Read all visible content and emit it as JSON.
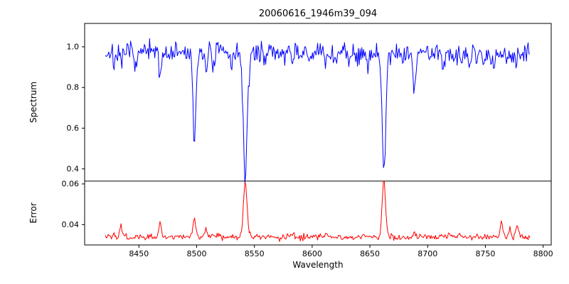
{
  "figure": {
    "title": "20060616_1946m39_094"
  },
  "x_axis": {
    "label": "Wavelength",
    "ticks": [
      8450,
      8500,
      8550,
      8600,
      8650,
      8700,
      8750,
      8800
    ],
    "lim": [
      8403,
      8807
    ],
    "data_start": 8421,
    "data_end": 8789,
    "data_step": 0.75
  },
  "chart_data": [
    {
      "type": "line",
      "id": "spectrum",
      "title": "20060616_1946m39_094",
      "ylabel": "Spectrum",
      "color": "#0000ff",
      "ylim": [
        0.34,
        1.115
      ],
      "yticks": [
        0.4,
        0.6,
        0.8,
        1.0
      ],
      "ytick_labels": [
        "0.4",
        "0.6",
        "0.8",
        "1.0"
      ],
      "continuum": 0.97,
      "noise_sigma": 0.027,
      "absorption_lines": [
        {
          "center": 8498.0,
          "depth": 0.45,
          "sigma": 1.3
        },
        {
          "center": 8542.1,
          "depth": 0.6,
          "sigma": 1.8
        },
        {
          "center": 8662.1,
          "depth": 0.58,
          "sigma": 1.6
        },
        {
          "center": 8428.5,
          "depth": 0.05,
          "sigma": 0.9
        },
        {
          "center": 8434.5,
          "depth": 0.08,
          "sigma": 1.0
        },
        {
          "center": 8448.0,
          "depth": 0.06,
          "sigma": 0.9
        },
        {
          "center": 8468.3,
          "depth": 0.11,
          "sigma": 1.0
        },
        {
          "center": 8508.0,
          "depth": 0.06,
          "sigma": 0.9
        },
        {
          "center": 8514.0,
          "depth": 0.07,
          "sigma": 1.0
        },
        {
          "center": 8530.0,
          "depth": 0.05,
          "sigma": 0.9
        },
        {
          "center": 8582.5,
          "depth": 0.06,
          "sigma": 1.0
        },
        {
          "center": 8598.0,
          "depth": 0.05,
          "sigma": 0.9
        },
        {
          "center": 8611.5,
          "depth": 0.05,
          "sigma": 0.9
        },
        {
          "center": 8621.0,
          "depth": 0.05,
          "sigma": 0.9
        },
        {
          "center": 8648.0,
          "depth": 0.06,
          "sigma": 1.0
        },
        {
          "center": 8688.5,
          "depth": 0.17,
          "sigma": 1.2
        },
        {
          "center": 8713.0,
          "depth": 0.07,
          "sigma": 1.0
        },
        {
          "center": 8736.0,
          "depth": 0.09,
          "sigma": 1.1
        },
        {
          "center": 8747.5,
          "depth": 0.05,
          "sigma": 0.9
        },
        {
          "center": 8757.0,
          "depth": 0.08,
          "sigma": 1.0
        },
        {
          "center": 8776.5,
          "depth": 0.07,
          "sigma": 1.0
        }
      ]
    },
    {
      "type": "line",
      "id": "error",
      "ylabel": "Error",
      "color": "#ff0000",
      "ylim": [
        0.03,
        0.0614
      ],
      "yticks": [
        0.04,
        0.06
      ],
      "ytick_labels": [
        "0.04",
        "0.06"
      ],
      "baseline": 0.0335,
      "noise_sigma": 0.0007,
      "spikes": [
        {
          "center": 8428.5,
          "height": 0.0015,
          "sigma": 0.8
        },
        {
          "center": 8434.5,
          "height": 0.0055,
          "sigma": 1.0
        },
        {
          "center": 8448.0,
          "height": 0.0015,
          "sigma": 0.8
        },
        {
          "center": 8468.3,
          "height": 0.0085,
          "sigma": 1.0
        },
        {
          "center": 8498.0,
          "height": 0.0085,
          "sigma": 1.2
        },
        {
          "center": 8508.0,
          "height": 0.0045,
          "sigma": 1.0
        },
        {
          "center": 8514.0,
          "height": 0.002,
          "sigma": 0.9
        },
        {
          "center": 8542.1,
          "height": 0.027,
          "sigma": 1.6
        },
        {
          "center": 8582.5,
          "height": 0.0018,
          "sigma": 0.9
        },
        {
          "center": 8611.5,
          "height": 0.0015,
          "sigma": 0.9
        },
        {
          "center": 8662.1,
          "height": 0.0277,
          "sigma": 1.5
        },
        {
          "center": 8688.5,
          "height": 0.003,
          "sigma": 1.0
        },
        {
          "center": 8713.0,
          "height": 0.0018,
          "sigma": 0.9
        },
        {
          "center": 8727.0,
          "height": 0.002,
          "sigma": 0.9
        },
        {
          "center": 8764.0,
          "height": 0.0075,
          "sigma": 1.2
        },
        {
          "center": 8771.0,
          "height": 0.004,
          "sigma": 1.0
        },
        {
          "center": 8777.5,
          "height": 0.0065,
          "sigma": 1.1
        }
      ]
    }
  ]
}
